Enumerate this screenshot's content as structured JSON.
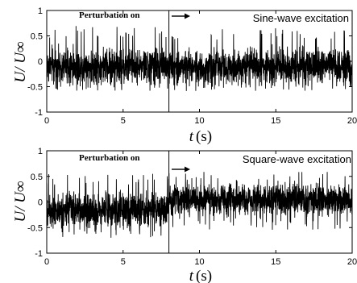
{
  "chart_data": [
    {
      "type": "line",
      "xlabel": "t",
      "xunits": "(s)",
      "ylabel": "U/ U∞",
      "xlim": [
        0,
        20
      ],
      "ylim": [
        -1,
        1
      ],
      "xticks": [
        "0",
        "5",
        "10",
        "15",
        "20"
      ],
      "yticks": [
        "1",
        "0.5",
        "0",
        "-0.5",
        "-1"
      ],
      "perturbation_label": "Perturbation on",
      "perturbation_time": 8,
      "excitation_label": "Sine-wave excitation",
      "series": [
        {
          "description": "noisy signal",
          "segments": [
            {
              "t_start": 0,
              "t_end": 8,
              "mean": -0.1,
              "min": -0.6,
              "max": 0.7
            },
            {
              "t_start": 8,
              "t_end": 20,
              "mean": -0.1,
              "min": -0.6,
              "max": 0.65
            }
          ]
        }
      ]
    },
    {
      "type": "line",
      "xlabel": "t",
      "xunits": "(s)",
      "ylabel": "U/ U∞",
      "xlim": [
        0,
        20
      ],
      "ylim": [
        -1,
        1
      ],
      "xticks": [
        "0",
        "5",
        "10",
        "15",
        "20"
      ],
      "yticks": [
        "1",
        "0.5",
        "0",
        "-0.5",
        "-1"
      ],
      "perturbation_label": "Perturbation on",
      "perturbation_time": 8,
      "excitation_label": "Square-wave excitation",
      "series": [
        {
          "description": "noisy signal",
          "segments": [
            {
              "t_start": 0,
              "t_end": 8,
              "mean": -0.15,
              "min": -0.7,
              "max": 0.55
            },
            {
              "t_start": 8,
              "t_end": 20,
              "mean": 0.05,
              "min": -0.55,
              "max": 0.6
            }
          ]
        }
      ]
    }
  ]
}
